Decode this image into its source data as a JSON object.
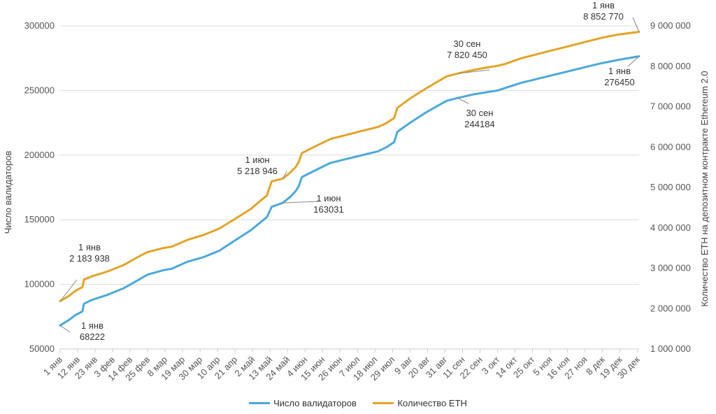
{
  "chart_data": {
    "type": "line",
    "title": "",
    "ylabel_left": "Число валидаторов",
    "ylabel_right": "Количество ETH на депозитном контракте Ethereum 2.0",
    "y_left_ticks": [
      "50000",
      "100000",
      "150000",
      "200000",
      "250000",
      "300000"
    ],
    "y_left_range": [
      50000,
      300000
    ],
    "y_right_ticks": [
      "1 000 000",
      "2 000 000",
      "3 000 000",
      "4 000 000",
      "5 000 000",
      "6 000 000",
      "7 000 000",
      "8 000 000",
      "9 000 000"
    ],
    "y_right_range": [
      1000000,
      9000000
    ],
    "x_ticks": [
      "1 янв",
      "12 янв",
      "23 янв",
      "3 фев",
      "14 фев",
      "25 фев",
      "8 мар",
      "19 мар",
      "30 мар",
      "10 апр",
      "21 апр",
      "2 май",
      "13 май",
      "24 май",
      "4 июн",
      "15 июн",
      "26 июн",
      "7 июл",
      "18 июл",
      "29 июл",
      "9 авг",
      "20 авг",
      "31 авг",
      "11 сен",
      "22 сен",
      "3 окт",
      "14 окт",
      "25 окт",
      "5 ноя",
      "16 ноя",
      "27 ноя",
      "8 дек",
      "19 дек",
      "30 дек"
    ],
    "series": [
      {
        "name": "Число валидаторов",
        "axis": "left",
        "color": "#4aa9df",
        "day": [
          0,
          5,
          10,
          14,
          15,
          20,
          30,
          40,
          45,
          50,
          55,
          65,
          70,
          80,
          90,
          100,
          110,
          120,
          125,
          130,
          133,
          140,
          145,
          148,
          150,
          152,
          160,
          170,
          180,
          190,
          200,
          205,
          210,
          212,
          220,
          230,
          240,
          243,
          250,
          260,
          270,
          275,
          280,
          290,
          300,
          310,
          320,
          330,
          340,
          350,
          364
        ],
        "values": [
          68222,
          72000,
          76500,
          79000,
          85000,
          88000,
          92000,
          97000,
          100500,
          104000,
          107500,
          111000,
          112000,
          117500,
          121000,
          126000,
          134000,
          142000,
          147000,
          152000,
          160000,
          163031,
          168000,
          172000,
          176000,
          183000,
          188000,
          194000,
          197000,
          200000,
          203000,
          206000,
          210000,
          218000,
          225000,
          233000,
          240000,
          242000,
          244184,
          247000,
          249000,
          250000,
          252000,
          256000,
          259000,
          262000,
          265000,
          268000,
          271000,
          273500,
          276450
        ]
      },
      {
        "name": "Количество ETH",
        "axis": "right",
        "color": "#e5a326",
        "day": [
          0,
          5,
          10,
          14,
          15,
          20,
          30,
          40,
          45,
          50,
          55,
          65,
          70,
          80,
          90,
          100,
          110,
          120,
          125,
          130,
          133,
          140,
          145,
          148,
          150,
          152,
          160,
          170,
          180,
          190,
          200,
          205,
          210,
          212,
          220,
          230,
          240,
          243,
          250,
          260,
          270,
          275,
          280,
          290,
          300,
          310,
          320,
          330,
          340,
          350,
          364
        ],
        "values": [
          2183938,
          2300000,
          2450000,
          2530000,
          2720000,
          2800000,
          2920000,
          3080000,
          3190000,
          3300000,
          3400000,
          3500000,
          3530000,
          3700000,
          3820000,
          3980000,
          4220000,
          4470000,
          4640000,
          4800000,
          5150000,
          5218946,
          5380000,
          5500000,
          5630000,
          5850000,
          6010000,
          6200000,
          6300000,
          6400000,
          6500000,
          6590000,
          6720000,
          6970000,
          7200000,
          7450000,
          7680000,
          7750000,
          7820450,
          7910000,
          7980000,
          8010000,
          8060000,
          8200000,
          8300000,
          8400000,
          8500000,
          8600000,
          8700000,
          8780000,
          8852770
        ]
      }
    ],
    "annotations": [
      {
        "series": "Количество ETH",
        "day": 0,
        "date": "1 янв",
        "value": "2 183 938"
      },
      {
        "series": "Число валидаторов",
        "day": 0,
        "date": "1 янв",
        "value": "68222"
      },
      {
        "series": "Количество ETH",
        "day": 140,
        "date": "1 июн",
        "value": "5 218 946"
      },
      {
        "series": "Число валидаторов",
        "day": 140,
        "date": "1 июн",
        "value": "163031"
      },
      {
        "series": "Количество ETH",
        "day": 250,
        "date": "30 сен",
        "value": "7 820 450"
      },
      {
        "series": "Число валидаторов",
        "day": 250,
        "date": "30 сен",
        "value": "244184"
      },
      {
        "series": "Количество ETH",
        "day": 364,
        "date": "1 янв",
        "value": "8 852 770"
      },
      {
        "series": "Число валидаторов",
        "day": 364,
        "date": "1 янв",
        "value": "276450"
      }
    ],
    "legend": [
      {
        "label": "Число валидаторов",
        "color": "#4aa9df"
      },
      {
        "label": "Количество ETH",
        "color": "#e5a326"
      }
    ],
    "legend_position": "bottom-center",
    "grid": true
  }
}
